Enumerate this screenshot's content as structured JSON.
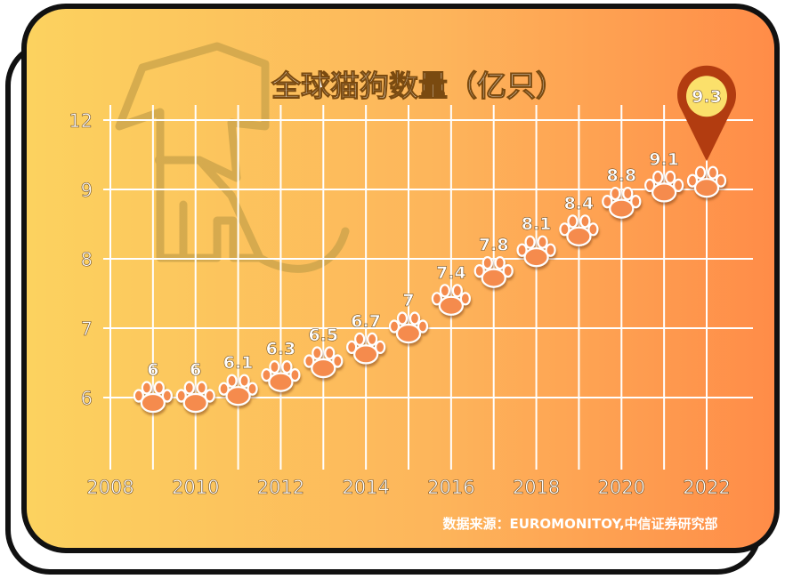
{
  "chart_data": {
    "type": "scatter",
    "title": "全球猫狗数量（亿只）",
    "x": [
      2009,
      2010,
      2011,
      2012,
      2013,
      2014,
      2015,
      2016,
      2017,
      2018,
      2019,
      2020,
      2021,
      2022
    ],
    "values": [
      6,
      6,
      6.1,
      6.3,
      6.5,
      6.7,
      7,
      7.4,
      7.8,
      8.1,
      8.4,
      8.8,
      9.1,
      9.3
    ],
    "data_labels": [
      "6",
      "6",
      "6.1",
      "6.3",
      "6.5",
      "6.7",
      "7",
      "7.4",
      "7.8",
      "8.1",
      "8.4",
      "8.8",
      "9.1",
      "9.3"
    ],
    "x_ticks": [
      "2008",
      "2010",
      "2012",
      "2014",
      "2016",
      "2018",
      "2020",
      "2022"
    ],
    "y_ticks": [
      "6",
      "7",
      "8",
      "9",
      "12"
    ],
    "y_tick_values": [
      6,
      7,
      8,
      9,
      12
    ],
    "xlim": [
      2008,
      2022
    ],
    "y_axis_scale": "broken (non-linear, 9 to 12 compressed)",
    "grid": true,
    "marker": "paw-print",
    "highlight": {
      "x": 2022,
      "label": "9.3",
      "marker": "map-pin"
    },
    "source": "数据来源：EUROMONITOY,中信证券研究部",
    "colors": {
      "background_start": "#fcd25f",
      "background_end": "#ff8c48",
      "paw": "#f58b4e",
      "pin": "#b23c10",
      "pin_inner": "#fbe06b",
      "grid": "#ffffff"
    }
  }
}
